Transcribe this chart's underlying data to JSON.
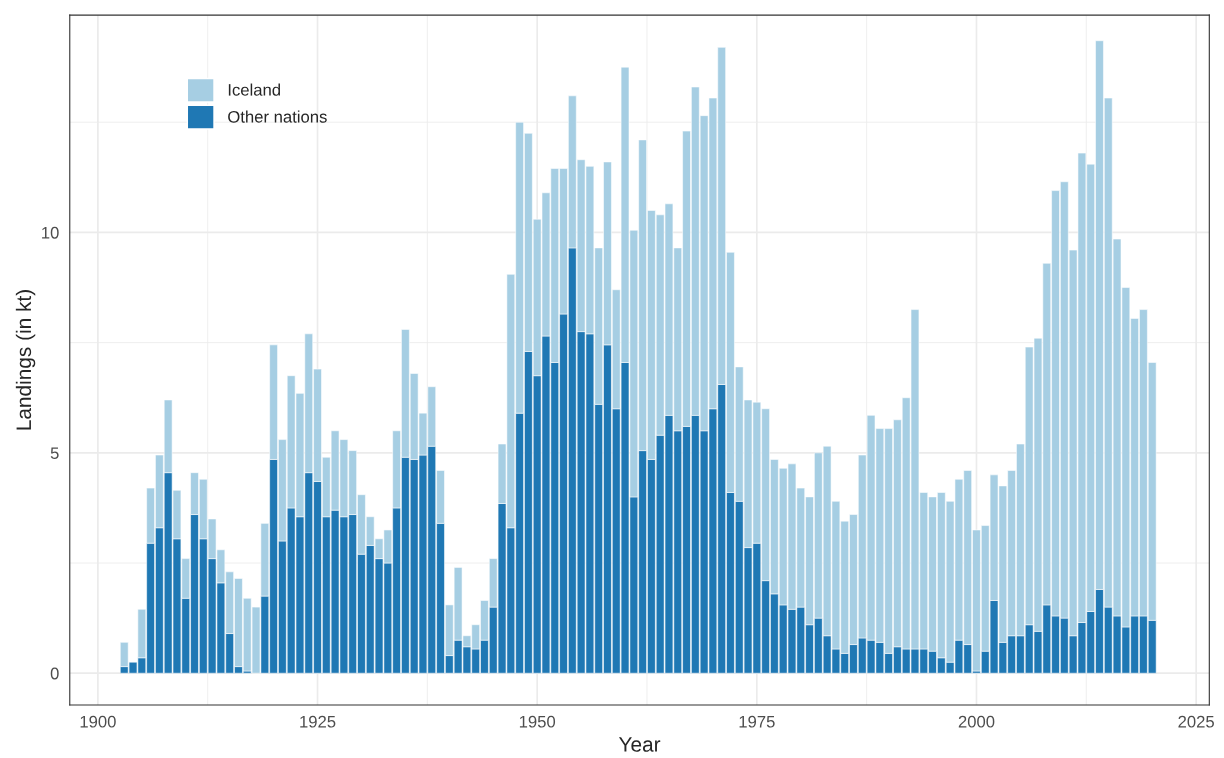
{
  "chart_data": {
    "type": "bar",
    "stacked": true,
    "xlabel": "Year",
    "ylabel": "Landings (in kt)",
    "x": [
      1903,
      1904,
      1905,
      1906,
      1907,
      1908,
      1909,
      1910,
      1911,
      1912,
      1913,
      1914,
      1915,
      1916,
      1917,
      1918,
      1919,
      1920,
      1921,
      1922,
      1923,
      1924,
      1925,
      1926,
      1927,
      1928,
      1929,
      1930,
      1931,
      1932,
      1933,
      1934,
      1935,
      1936,
      1937,
      1938,
      1939,
      1940,
      1941,
      1942,
      1943,
      1944,
      1945,
      1946,
      1947,
      1948,
      1949,
      1950,
      1951,
      1952,
      1953,
      1954,
      1955,
      1956,
      1957,
      1958,
      1959,
      1960,
      1961,
      1962,
      1963,
      1964,
      1965,
      1966,
      1967,
      1968,
      1969,
      1970,
      1971,
      1972,
      1973,
      1974,
      1975,
      1976,
      1977,
      1978,
      1979,
      1980,
      1981,
      1982,
      1983,
      1984,
      1985,
      1986,
      1987,
      1988,
      1989,
      1990,
      1991,
      1992,
      1993,
      1994,
      1995,
      1996,
      1997,
      1998,
      1999,
      2000,
      2001,
      2002,
      2003,
      2004,
      2005,
      2006,
      2007,
      2008,
      2009,
      2010,
      2011,
      2012,
      2013,
      2014,
      2015,
      2016,
      2017,
      2018,
      2019,
      2020
    ],
    "series": [
      {
        "name": "Other nations",
        "color": "#1f78b4",
        "values": [
          0.15,
          0.25,
          0.35,
          2.95,
          3.3,
          4.55,
          3.05,
          1.7,
          3.6,
          3.05,
          2.6,
          2.05,
          0.9,
          0.15,
          0.05,
          0,
          1.75,
          4.85,
          3.0,
          3.75,
          3.55,
          4.55,
          4.35,
          3.55,
          3.7,
          3.55,
          3.6,
          2.7,
          2.9,
          2.6,
          2.5,
          3.75,
          4.9,
          4.85,
          4.95,
          5.15,
          3.4,
          0.4,
          0.75,
          0.6,
          0.55,
          0.75,
          1.5,
          3.85,
          3.3,
          5.9,
          7.3,
          6.75,
          7.65,
          7.05,
          8.15,
          9.65,
          7.75,
          7.7,
          6.1,
          7.45,
          6.0,
          7.05,
          4.0,
          5.05,
          4.85,
          5.4,
          5.85,
          5.5,
          5.6,
          5.85,
          5.5,
          6.0,
          6.55,
          4.1,
          3.9,
          2.85,
          2.95,
          2.1,
          1.8,
          1.55,
          1.45,
          1.5,
          1.1,
          1.25,
          0.85,
          0.55,
          0.45,
          0.65,
          0.8,
          0.75,
          0.7,
          0.45,
          0.6,
          0.55,
          0.55,
          0.55,
          0.5,
          0.35,
          0.25,
          0.75,
          0.65,
          0.05,
          0.5,
          1.65,
          0.7,
          0.85,
          0.85,
          1.1,
          0.95,
          1.55,
          1.3,
          1.25,
          0.85,
          1.15,
          1.4,
          1.9,
          1.5,
          1.3,
          1.05,
          1.3,
          1.3,
          1.2
        ]
      },
      {
        "name": "Iceland",
        "color": "#a6cee3",
        "values": [
          0.55,
          0,
          1.1,
          1.25,
          1.65,
          1.65,
          1.1,
          0.9,
          0.95,
          1.35,
          0.9,
          0.75,
          1.4,
          2.0,
          1.65,
          1.5,
          1.65,
          2.6,
          2.3,
          3.0,
          2.8,
          3.15,
          2.55,
          1.35,
          1.8,
          1.75,
          1.45,
          1.35,
          0.65,
          0.45,
          0.75,
          1.75,
          2.9,
          1.95,
          0.95,
          1.35,
          1.2,
          1.15,
          1.65,
          0.25,
          0.55,
          0.9,
          1.1,
          1.35,
          5.75,
          6.6,
          4.95,
          3.55,
          3.25,
          4.4,
          3.3,
          3.45,
          3.9,
          3.8,
          3.55,
          4.15,
          2.7,
          6.7,
          6.05,
          7.05,
          5.65,
          5.0,
          4.8,
          4.15,
          6.7,
          7.45,
          7.15,
          7.05,
          7.65,
          5.45,
          3.05,
          3.35,
          3.2,
          3.9,
          3.05,
          3.1,
          3.3,
          2.7,
          2.9,
          3.75,
          4.3,
          3.35,
          3.0,
          2.95,
          4.15,
          5.1,
          4.85,
          5.1,
          5.15,
          5.7,
          7.7,
          3.55,
          3.5,
          3.75,
          3.65,
          3.65,
          3.95,
          3.2,
          2.85,
          2.85,
          3.55,
          3.75,
          4.35,
          6.3,
          6.65,
          7.75,
          9.65,
          9.9,
          8.75,
          10.65,
          10.15,
          12.45,
          11.55,
          8.55,
          7.7,
          6.75,
          6.95,
          5.85
        ]
      }
    ],
    "xlim": [
      1896.8,
      2026.5
    ],
    "xticks": [
      1900,
      1925,
      1950,
      1975,
      2000,
      2025
    ],
    "ylim": [
      -0.72,
      14.93
    ],
    "yticks": [
      0,
      5,
      10
    ],
    "grid": true,
    "legend": "top left"
  }
}
